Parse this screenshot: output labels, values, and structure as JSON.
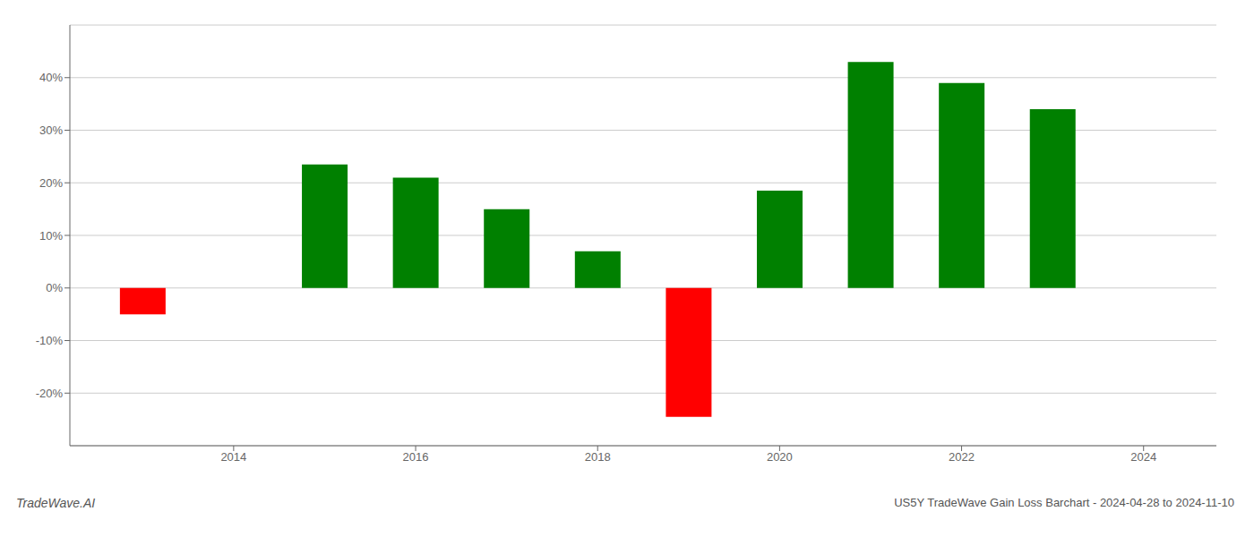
{
  "chart_data": {
    "type": "bar",
    "x": [
      2013,
      2015,
      2016,
      2017,
      2018,
      2019,
      2020,
      2021,
      2022,
      2023
    ],
    "values": [
      -5.0,
      23.5,
      21.0,
      15.0,
      7.0,
      -24.5,
      18.5,
      43.0,
      39.0,
      34.0
    ],
    "colors": [
      "#ff0000",
      "#008000",
      "#008000",
      "#008000",
      "#008000",
      "#ff0000",
      "#008000",
      "#008000",
      "#008000",
      "#008000"
    ],
    "xlim": [
      2012.2,
      2024.8
    ],
    "xticks": [
      2014,
      2016,
      2018,
      2020,
      2022,
      2024
    ],
    "ylim": [
      -30,
      50
    ],
    "yticks": [
      {
        "value": -20,
        "label": "-20%"
      },
      {
        "value": -10,
        "label": "-10%"
      },
      {
        "value": 0,
        "label": "0%"
      },
      {
        "value": 10,
        "label": "10%"
      },
      {
        "value": 20,
        "label": "20%"
      },
      {
        "value": 30,
        "label": "30%"
      },
      {
        "value": 40,
        "label": "40%"
      }
    ],
    "grid": "y",
    "annotations": [
      "TradeWave.AI",
      "US5Y TradeWave Gain Loss Barchart - 2024-04-28 to 2024-11-10"
    ]
  }
}
